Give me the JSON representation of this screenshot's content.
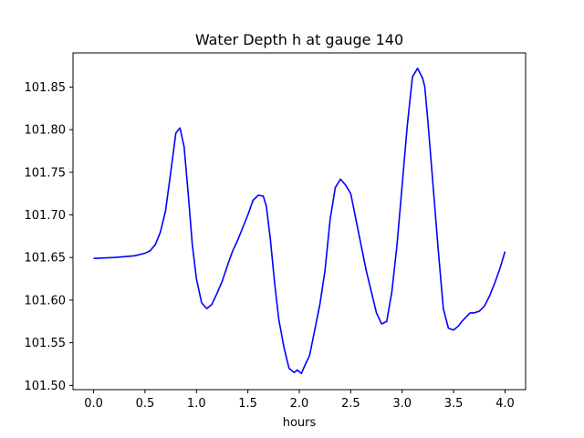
{
  "chart_data": {
    "type": "line",
    "title": "Water Depth h at gauge 140",
    "xlabel": "hours",
    "ylabel": "",
    "xlim": [
      -0.2,
      4.2
    ],
    "ylim": [
      101.495,
      101.89
    ],
    "xticks": [
      0.0,
      0.5,
      1.0,
      1.5,
      2.0,
      2.5,
      3.0,
      3.5,
      4.0
    ],
    "xtick_labels": [
      "0.0",
      "0.5",
      "1.0",
      "1.5",
      "2.0",
      "2.5",
      "3.0",
      "3.5",
      "4.0"
    ],
    "yticks": [
      101.5,
      101.55,
      101.6,
      101.65,
      101.7,
      101.75,
      101.8,
      101.85
    ],
    "ytick_labels": [
      "101.50",
      "101.55",
      "101.60",
      "101.65",
      "101.70",
      "101.75",
      "101.80",
      "101.85"
    ],
    "grid": false,
    "line_color": "#0000ff",
    "series": [
      {
        "x": [
          0.0,
          0.2,
          0.4,
          0.5,
          0.55,
          0.6,
          0.65,
          0.7,
          0.75,
          0.8,
          0.84,
          0.88,
          0.92,
          0.96,
          1.0,
          1.05,
          1.1,
          1.15,
          1.2,
          1.25,
          1.3,
          1.35,
          1.4,
          1.45,
          1.5,
          1.55,
          1.6,
          1.65,
          1.68,
          1.72,
          1.76,
          1.8,
          1.85,
          1.9,
          1.95,
          1.98,
          2.02,
          2.06,
          2.1,
          2.15,
          2.2,
          2.25,
          2.3,
          2.35,
          2.4,
          2.45,
          2.5,
          2.55,
          2.6,
          2.65,
          2.7,
          2.75,
          2.8,
          2.85,
          2.9,
          2.95,
          3.0,
          3.05,
          3.1,
          3.15,
          3.2,
          3.22,
          3.25,
          3.3,
          3.35,
          3.4,
          3.45,
          3.5,
          3.55,
          3.58,
          3.62,
          3.66,
          3.7,
          3.75,
          3.8,
          3.85,
          3.9,
          3.95,
          4.0
        ],
        "y": [
          101.649,
          101.65,
          101.652,
          101.655,
          101.658,
          101.665,
          101.68,
          101.705,
          101.75,
          101.796,
          101.802,
          101.78,
          101.725,
          101.665,
          101.625,
          101.597,
          101.59,
          101.595,
          101.608,
          101.622,
          101.64,
          101.657,
          101.67,
          101.685,
          101.7,
          101.717,
          101.723,
          101.722,
          101.71,
          101.67,
          101.62,
          101.578,
          101.545,
          101.52,
          101.515,
          101.518,
          101.514,
          101.525,
          101.535,
          101.565,
          101.595,
          101.635,
          101.695,
          101.732,
          101.742,
          101.735,
          101.725,
          101.695,
          101.665,
          101.635,
          101.61,
          101.585,
          101.572,
          101.575,
          101.61,
          101.665,
          101.735,
          101.805,
          101.862,
          101.872,
          101.86,
          101.85,
          101.81,
          101.735,
          101.66,
          101.59,
          101.567,
          101.565,
          101.57,
          101.575,
          101.58,
          101.585,
          101.585,
          101.587,
          101.593,
          101.605,
          101.62,
          101.637,
          101.657
        ]
      }
    ]
  }
}
